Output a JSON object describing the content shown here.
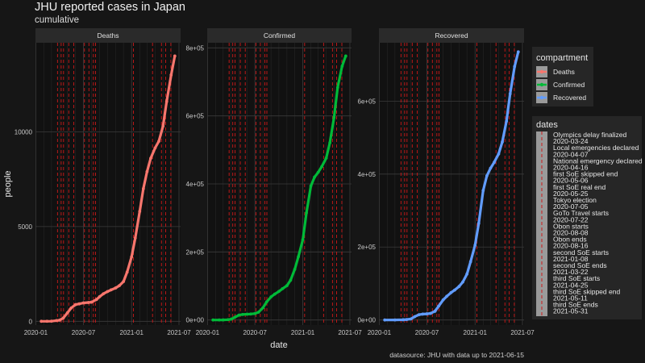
{
  "title": "JHU reported cases in Japan",
  "subtitle": "cumulative",
  "caption": "datasource: JHU with data up to 2021-06-15",
  "colors": {
    "background": "#161616",
    "panel": "#111111",
    "strip": "#2a2a2a",
    "grid": "#3a3a3a",
    "event_line": "#cc1a1a",
    "Deaths": "#f8766d",
    "Confirmed": "#00ba38",
    "Recovered": "#619cff"
  },
  "chart_data": {
    "type": "line",
    "facets": [
      "Deaths",
      "Confirmed",
      "Recovered"
    ],
    "xlabel": "date",
    "ylabel": "people",
    "x_ticks": [
      "2020-01",
      "2020-07",
      "2021-01",
      "2021-07"
    ],
    "x_range": [
      "2020-01-22",
      "2021-06-15"
    ],
    "panels": [
      {
        "name": "Deaths",
        "ylim": [
          -200,
          14700
        ],
        "y_ticks": [
          0,
          5000,
          10000
        ],
        "y_tick_labels": [
          "0",
          "5000",
          "10000"
        ],
        "points": [
          [
            "2020-01-22",
            0
          ],
          [
            "2020-02-13",
            1
          ],
          [
            "2020-03-01",
            6
          ],
          [
            "2020-03-20",
            40
          ],
          [
            "2020-04-01",
            60
          ],
          [
            "2020-04-15",
            170
          ],
          [
            "2020-05-01",
            450
          ],
          [
            "2020-05-15",
            700
          ],
          [
            "2020-06-01",
            880
          ],
          [
            "2020-06-15",
            920
          ],
          [
            "2020-07-01",
            970
          ],
          [
            "2020-07-20",
            990
          ],
          [
            "2020-08-01",
            1010
          ],
          [
            "2020-08-20",
            1150
          ],
          [
            "2020-09-01",
            1300
          ],
          [
            "2020-09-15",
            1450
          ],
          [
            "2020-10-01",
            1570
          ],
          [
            "2020-10-15",
            1660
          ],
          [
            "2020-11-01",
            1760
          ],
          [
            "2020-11-15",
            1880
          ],
          [
            "2020-12-01",
            2100
          ],
          [
            "2020-12-15",
            2600
          ],
          [
            "2021-01-01",
            3400
          ],
          [
            "2021-01-15",
            4400
          ],
          [
            "2021-02-01",
            5800
          ],
          [
            "2021-02-15",
            7000
          ],
          [
            "2021-03-01",
            7900
          ],
          [
            "2021-03-15",
            8600
          ],
          [
            "2021-04-01",
            9150
          ],
          [
            "2021-04-15",
            9500
          ],
          [
            "2021-05-01",
            10300
          ],
          [
            "2021-05-15",
            11600
          ],
          [
            "2021-06-01",
            13000
          ],
          [
            "2021-06-15",
            14000
          ]
        ]
      },
      {
        "name": "Confirmed",
        "ylim": [
          -15000,
          815000
        ],
        "y_ticks": [
          0,
          200000,
          400000,
          600000,
          800000
        ],
        "y_tick_labels": [
          "0e+00",
          "2e+05",
          "4e+05",
          "6e+05",
          "8e+05"
        ],
        "points": [
          [
            "2020-01-22",
            0
          ],
          [
            "2020-02-15",
            50
          ],
          [
            "2020-03-01",
            250
          ],
          [
            "2020-03-20",
            1000
          ],
          [
            "2020-04-01",
            2400
          ],
          [
            "2020-04-15",
            8000
          ],
          [
            "2020-05-01",
            14300
          ],
          [
            "2020-05-15",
            16200
          ],
          [
            "2020-06-01",
            16900
          ],
          [
            "2020-06-15",
            17500
          ],
          [
            "2020-07-01",
            18800
          ],
          [
            "2020-07-15",
            23000
          ],
          [
            "2020-08-01",
            36000
          ],
          [
            "2020-08-15",
            53000
          ],
          [
            "2020-09-01",
            68000
          ],
          [
            "2020-09-15",
            76000
          ],
          [
            "2020-10-01",
            84000
          ],
          [
            "2020-10-15",
            92000
          ],
          [
            "2020-11-01",
            101000
          ],
          [
            "2020-11-15",
            117000
          ],
          [
            "2020-12-01",
            149000
          ],
          [
            "2020-12-15",
            186000
          ],
          [
            "2021-01-01",
            236000
          ],
          [
            "2021-01-15",
            315000
          ],
          [
            "2021-02-01",
            394000
          ],
          [
            "2021-02-15",
            420000
          ],
          [
            "2021-03-01",
            434000
          ],
          [
            "2021-03-15",
            451000
          ],
          [
            "2021-04-01",
            476000
          ],
          [
            "2021-04-15",
            521000
          ],
          [
            "2021-05-01",
            595000
          ],
          [
            "2021-05-15",
            684000
          ],
          [
            "2021-06-01",
            746000
          ],
          [
            "2021-06-15",
            776000
          ]
        ]
      },
      {
        "name": "Recovered",
        "ylim": [
          -14000,
          760000
        ],
        "y_ticks": [
          0,
          200000,
          400000,
          600000
        ],
        "y_tick_labels": [
          "0e+00",
          "2e+05",
          "4e+05",
          "6e+05"
        ],
        "points": [
          [
            "2020-01-22",
            0
          ],
          [
            "2020-03-01",
            100
          ],
          [
            "2020-04-01",
            500
          ],
          [
            "2020-04-15",
            1200
          ],
          [
            "2020-05-01",
            2800
          ],
          [
            "2020-05-15",
            9000
          ],
          [
            "2020-06-01",
            14500
          ],
          [
            "2020-06-15",
            16000
          ],
          [
            "2020-07-01",
            16800
          ],
          [
            "2020-07-15",
            18000
          ],
          [
            "2020-08-01",
            24000
          ],
          [
            "2020-08-15",
            38000
          ],
          [
            "2020-09-01",
            55000
          ],
          [
            "2020-09-15",
            65000
          ],
          [
            "2020-10-01",
            75000
          ],
          [
            "2020-10-15",
            82000
          ],
          [
            "2020-11-01",
            92000
          ],
          [
            "2020-11-15",
            104000
          ],
          [
            "2020-12-01",
            126000
          ],
          [
            "2020-12-15",
            160000
          ],
          [
            "2021-01-01",
            205000
          ],
          [
            "2021-01-15",
            265000
          ],
          [
            "2021-02-01",
            355000
          ],
          [
            "2021-02-15",
            395000
          ],
          [
            "2021-03-01",
            416000
          ],
          [
            "2021-03-15",
            432000
          ],
          [
            "2021-04-01",
            455000
          ],
          [
            "2021-04-15",
            488000
          ],
          [
            "2021-05-01",
            545000
          ],
          [
            "2021-05-15",
            620000
          ],
          [
            "2021-06-01",
            695000
          ],
          [
            "2021-06-15",
            735000
          ]
        ]
      }
    ],
    "event_dates": [
      "2020-03-24",
      "2020-04-07",
      "2020-04-16",
      "2020-05-06",
      "2020-05-25",
      "2020-07-05",
      "2020-07-22",
      "2020-08-08",
      "2020-08-16",
      "2021-01-08",
      "2021-03-22",
      "2021-04-25",
      "2021-05-11",
      "2021-05-31"
    ],
    "legends": [
      {
        "title": "compartment",
        "position": "right",
        "entries": [
          "Deaths",
          "Confirmed",
          "Recovered"
        ]
      },
      {
        "title": "dates",
        "position": "right",
        "entries": [
          "Olympics delay finalized",
          "2020-03-24",
          "Local emergencies declared",
          "2020-04-07",
          "National emergency declared",
          "2020-04-16",
          "first SoE skipped end",
          "2020-05-06",
          "first SoE real end",
          "2020-05-25",
          "Tokyo election",
          "2020-07-05",
          "GoTo Travel starts",
          "2020-07-22",
          "Obon starts",
          "2020-08-08",
          "Obon ends",
          "2020-08-16",
          "second SoE starts",
          "2021-01-08",
          "second SoE ends",
          "2021-03-22",
          "third SoE starts",
          "2021-04-25",
          "third SoE skipped end",
          "2021-05-11",
          "third SoE ends",
          "2021-05-31"
        ]
      }
    ]
  }
}
